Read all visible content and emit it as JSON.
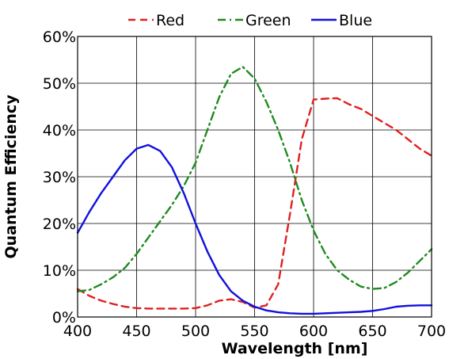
{
  "chart_data": {
    "type": "line",
    "xlabel": "Wavelength [nm]",
    "ylabel": "Quantum Efficiency",
    "xlim": [
      400,
      700
    ],
    "ylim": [
      0,
      60
    ],
    "x_ticks": [
      "400",
      "450",
      "500",
      "550",
      "600",
      "650",
      "700"
    ],
    "y_ticks": [
      "0%",
      "10%",
      "20%",
      "30%",
      "40%",
      "50%",
      "60%"
    ],
    "grid": true,
    "legend_position": "top",
    "series": [
      {
        "name": "Red",
        "color": "#e02020",
        "style": "dashed",
        "points": [
          [
            400,
            6
          ],
          [
            410,
            4.5
          ],
          [
            420,
            3.5
          ],
          [
            430,
            2.8
          ],
          [
            440,
            2.2
          ],
          [
            450,
            1.9
          ],
          [
            460,
            1.8
          ],
          [
            470,
            1.8
          ],
          [
            480,
            1.8
          ],
          [
            490,
            1.8
          ],
          [
            500,
            1.9
          ],
          [
            510,
            2.5
          ],
          [
            520,
            3.5
          ],
          [
            530,
            3.8
          ],
          [
            540,
            3.2
          ],
          [
            550,
            2
          ],
          [
            560,
            2.5
          ],
          [
            570,
            7
          ],
          [
            580,
            22
          ],
          [
            590,
            38
          ],
          [
            600,
            46.5
          ],
          [
            610,
            46.7
          ],
          [
            620,
            46.8
          ],
          [
            630,
            45.5
          ],
          [
            640,
            44.5
          ],
          [
            650,
            43
          ],
          [
            660,
            41.5
          ],
          [
            670,
            40
          ],
          [
            680,
            38
          ],
          [
            690,
            36
          ],
          [
            700,
            34.5
          ]
        ]
      },
      {
        "name": "Green",
        "color": "#1f8a1f",
        "style": "dashdot",
        "points": [
          [
            400,
            5.5
          ],
          [
            410,
            5.8
          ],
          [
            420,
            7
          ],
          [
            430,
            8.5
          ],
          [
            440,
            10.5
          ],
          [
            450,
            13.5
          ],
          [
            460,
            17
          ],
          [
            470,
            20.5
          ],
          [
            480,
            24
          ],
          [
            490,
            28
          ],
          [
            500,
            33
          ],
          [
            510,
            40
          ],
          [
            520,
            47
          ],
          [
            530,
            52
          ],
          [
            540,
            53.5
          ],
          [
            550,
            51
          ],
          [
            560,
            46
          ],
          [
            570,
            40
          ],
          [
            580,
            33
          ],
          [
            590,
            25
          ],
          [
            600,
            18.5
          ],
          [
            610,
            13.5
          ],
          [
            620,
            10
          ],
          [
            630,
            8
          ],
          [
            640,
            6.5
          ],
          [
            650,
            6
          ],
          [
            660,
            6.2
          ],
          [
            670,
            7.5
          ],
          [
            680,
            9.5
          ],
          [
            690,
            12
          ],
          [
            700,
            14.5
          ]
        ]
      },
      {
        "name": "Blue",
        "color": "#1010dd",
        "style": "solid",
        "points": [
          [
            400,
            18
          ],
          [
            410,
            22.5
          ],
          [
            420,
            26.5
          ],
          [
            430,
            30
          ],
          [
            440,
            33.5
          ],
          [
            450,
            36
          ],
          [
            460,
            36.8
          ],
          [
            470,
            35.5
          ],
          [
            480,
            32
          ],
          [
            490,
            26.5
          ],
          [
            500,
            20
          ],
          [
            510,
            14
          ],
          [
            520,
            9
          ],
          [
            530,
            5.5
          ],
          [
            540,
            3.5
          ],
          [
            550,
            2.2
          ],
          [
            560,
            1.4
          ],
          [
            570,
            1
          ],
          [
            580,
            0.8
          ],
          [
            590,
            0.7
          ],
          [
            600,
            0.7
          ],
          [
            610,
            0.8
          ],
          [
            620,
            0.9
          ],
          [
            630,
            1
          ],
          [
            640,
            1.1
          ],
          [
            650,
            1.3
          ],
          [
            660,
            1.7
          ],
          [
            670,
            2.2
          ],
          [
            680,
            2.4
          ],
          [
            690,
            2.5
          ],
          [
            700,
            2.5
          ]
        ]
      }
    ]
  }
}
